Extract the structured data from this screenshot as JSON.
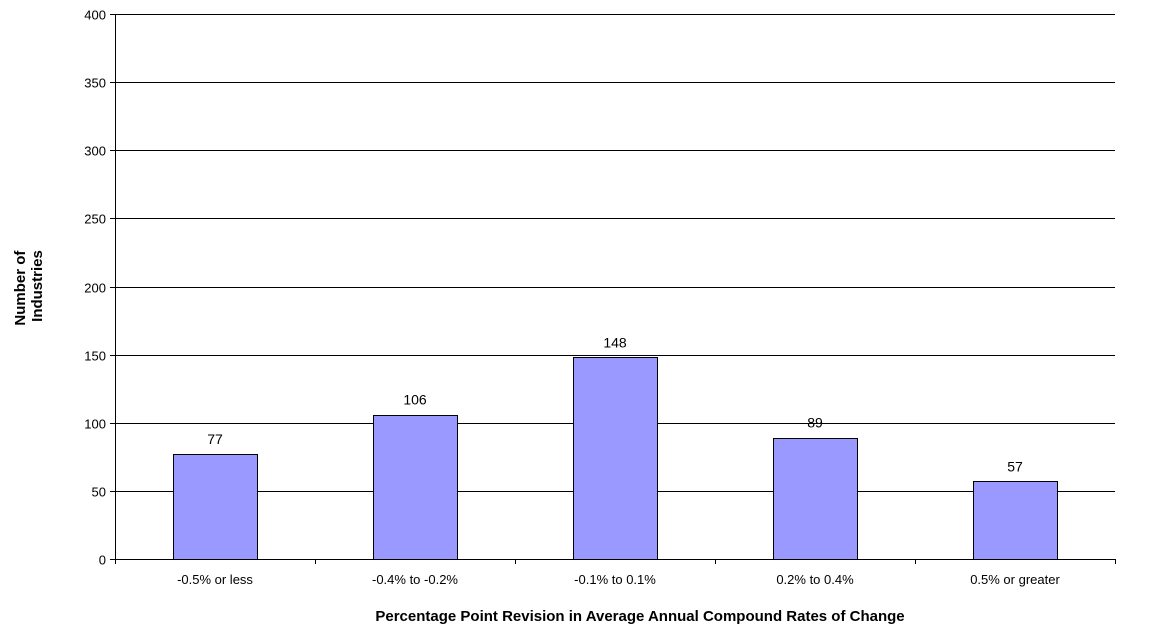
{
  "chart_data": {
    "type": "bar",
    "title": "",
    "xlabel": "Percentage Point Revision in Average Annual Compound Rates of Change",
    "ylabel_lines": [
      "Number of",
      "Industries"
    ],
    "categories": [
      "-0.5% or less",
      "-0.4% to -0.2%",
      "-0.1% to 0.1%",
      "0.2% to 0.4%",
      "0.5% or greater"
    ],
    "values": [
      77,
      106,
      148,
      89,
      57
    ],
    "data_labels": [
      "77",
      "106",
      "148",
      "89",
      "57"
    ],
    "ylim": [
      0,
      400
    ],
    "yticks": [
      0,
      50,
      100,
      150,
      200,
      250,
      300,
      350,
      400
    ],
    "grid": true,
    "legend": "none",
    "colors": {
      "bar_fill": "#9999ff",
      "bar_stroke": "#000000",
      "grid": "#000000",
      "axis": "#000000"
    }
  }
}
